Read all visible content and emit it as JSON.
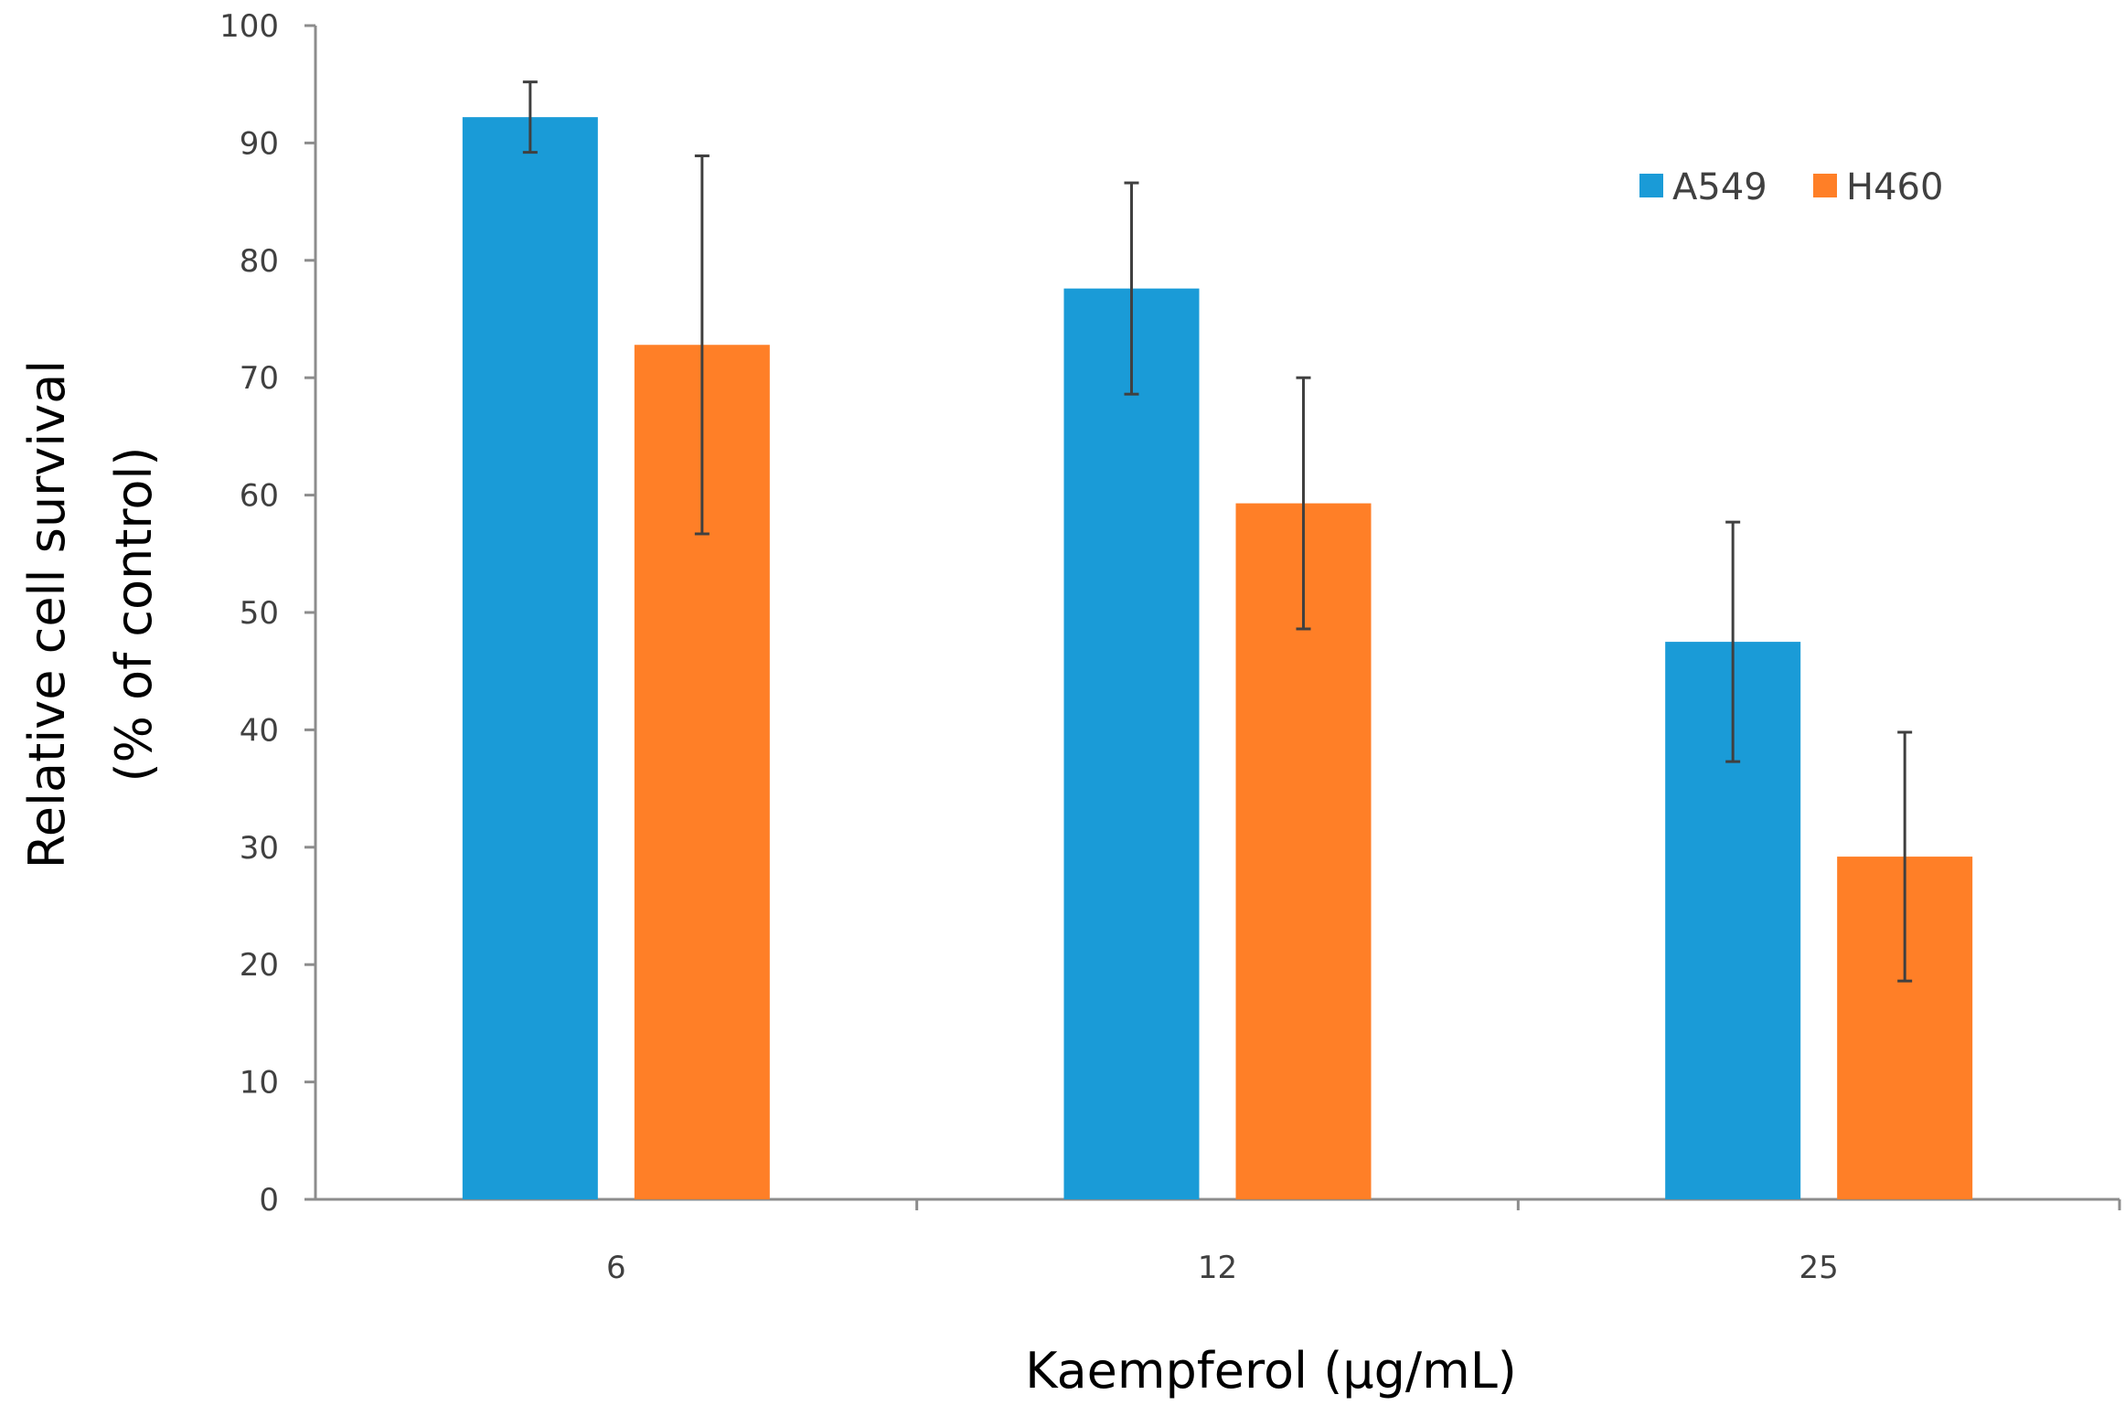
{
  "chart_data": {
    "type": "bar",
    "title": "",
    "categories": [
      "6",
      "12",
      "25"
    ],
    "series": [
      {
        "name": "A549",
        "color": "#1a9bd7",
        "values": [
          92.2,
          77.6,
          47.5
        ],
        "errors": [
          3.0,
          9.0,
          10.2
        ]
      },
      {
        "name": "H460",
        "color": "#ff7f27",
        "values": [
          72.8,
          59.3,
          29.2
        ],
        "errors": [
          16.1,
          10.7,
          10.6
        ]
      }
    ],
    "xlabel": "Kaempferol  (μg/mL)",
    "ylabel": "Relative cell survival",
    "ylabel2": "(% of control)",
    "ylim": [
      0,
      100
    ],
    "yticks": [
      0,
      10,
      20,
      30,
      40,
      50,
      60,
      70,
      80,
      90,
      100
    ],
    "grid": false,
    "legend_position": "top-right"
  }
}
